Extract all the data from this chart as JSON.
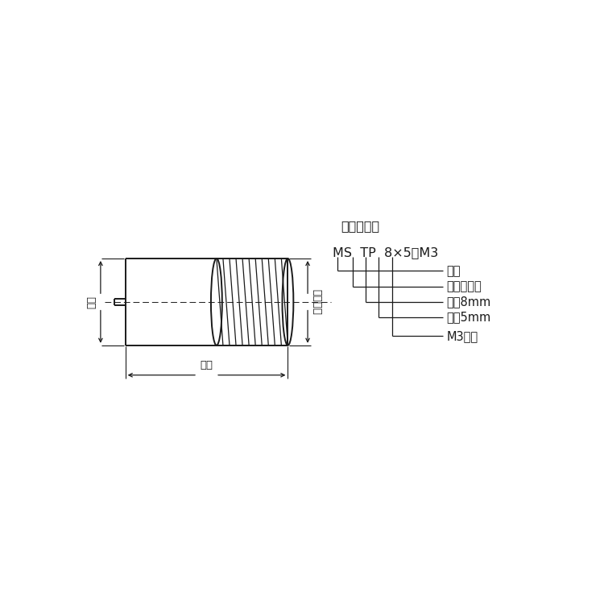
{
  "bg_color": "#ffffff",
  "line_color": "#1a1a1a",
  "title_label": "品番表示例",
  "part_number_parts": [
    "MS",
    "TP",
    "8×5",
    "M3"
  ],
  "part_number_display": "MS  TP  8×5・M3",
  "labels": [
    "軟銃",
    "めねじ記号",
    "外彸8mm",
    "長さ5mm",
    "M3ねじ"
  ],
  "dim_gaikei": "外径",
  "dim_nagasa": "長さ",
  "dim_meneji": "めねじ径",
  "fontsize_label": 10.5,
  "fontsize_title": 11.5,
  "fontsize_dim": 9.5,
  "fontsize_part": 11.5
}
